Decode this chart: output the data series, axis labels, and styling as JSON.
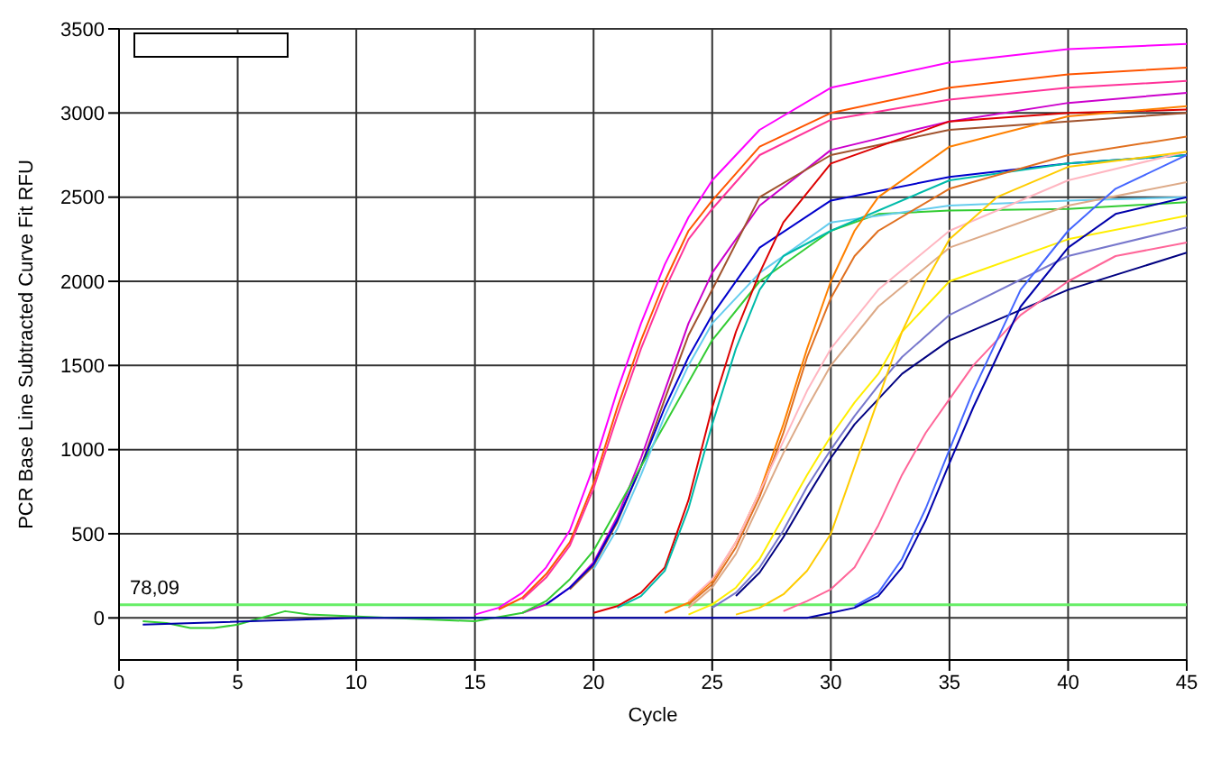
{
  "chart_data": {
    "type": "line",
    "xlabel": "Cycle",
    "ylabel": "PCR Base Line Subtracted Curve Fit RFU",
    "xlim": [
      0,
      45
    ],
    "xticks": [
      0,
      5,
      10,
      15,
      20,
      25,
      30,
      35,
      40,
      45
    ],
    "ylim": [
      -250,
      3500
    ],
    "yticks": [
      0,
      500,
      1000,
      1500,
      2000,
      2500,
      3000,
      3500
    ],
    "grid": true,
    "marker": "none",
    "line_style": "solid",
    "ref_lines": [
      {
        "axis": "y",
        "value": 78.09,
        "label": "78,09",
        "color": "#66ee66"
      }
    ],
    "series": [
      {
        "color": "#ff00ff",
        "x": [
          15,
          16,
          17,
          18,
          19,
          20,
          21,
          22,
          23,
          24,
          25,
          27,
          30,
          35,
          40,
          45
        ],
        "values": [
          20,
          60,
          150,
          300,
          520,
          900,
          1350,
          1750,
          2100,
          2380,
          2600,
          2900,
          3150,
          3300,
          3380,
          3410
        ]
      },
      {
        "color": "#ff5500",
        "x": [
          16,
          17,
          18,
          19,
          20,
          21,
          22,
          23,
          24,
          25,
          27,
          30,
          35,
          40,
          45
        ],
        "values": [
          50,
          120,
          260,
          450,
          800,
          1250,
          1650,
          2000,
          2300,
          2480,
          2800,
          3000,
          3150,
          3230,
          3270
        ]
      },
      {
        "color": "#ff3399",
        "x": [
          17,
          18,
          19,
          20,
          21,
          22,
          23,
          24,
          25,
          27,
          30,
          35,
          40,
          45
        ],
        "values": [
          110,
          240,
          430,
          770,
          1200,
          1600,
          1950,
          2250,
          2430,
          2750,
          2960,
          3080,
          3150,
          3190
        ]
      },
      {
        "color": "#cc00cc",
        "x": [
          17,
          18,
          19,
          20,
          21,
          22,
          23,
          24,
          25,
          27,
          30,
          35,
          40,
          45
        ],
        "values": [
          30,
          80,
          180,
          330,
          600,
          950,
          1350,
          1750,
          2050,
          2450,
          2780,
          2950,
          3060,
          3120
        ]
      },
      {
        "color": "#a0522d",
        "x": [
          19,
          20,
          21,
          22,
          23,
          24,
          25,
          27,
          30,
          35,
          40,
          45
        ],
        "values": [
          170,
          310,
          570,
          900,
          1300,
          1680,
          1950,
          2500,
          2750,
          2900,
          2950,
          3000
        ]
      },
      {
        "color": "#0000cc",
        "x": [
          18,
          19,
          20,
          21,
          22,
          23,
          24,
          25,
          27,
          30,
          35,
          40,
          45
        ],
        "values": [
          80,
          180,
          320,
          580,
          900,
          1250,
          1550,
          1800,
          2200,
          2480,
          2620,
          2700,
          2750
        ]
      },
      {
        "color": "#33cc33",
        "x": [
          1,
          2,
          3,
          4,
          5,
          6,
          7,
          8,
          15,
          17,
          18,
          19,
          20,
          21,
          22,
          23,
          24,
          25,
          27,
          30,
          32,
          35,
          40,
          45
        ],
        "values": [
          -20,
          -30,
          -60,
          -60,
          -40,
          0,
          40,
          20,
          -20,
          30,
          100,
          230,
          400,
          650,
          900,
          1150,
          1400,
          1650,
          2000,
          2300,
          2400,
          2420,
          2430,
          2470
        ]
      },
      {
        "color": "#66ccee",
        "x": [
          20,
          21,
          22,
          23,
          24,
          25,
          27,
          30,
          35,
          40,
          45
        ],
        "values": [
          290,
          530,
          850,
          1200,
          1500,
          1750,
          2050,
          2350,
          2450,
          2480,
          2500
        ]
      },
      {
        "color": "#dd0000",
        "x": [
          20,
          21,
          22,
          23,
          24,
          25,
          26,
          27,
          28,
          30,
          35,
          40,
          45
        ],
        "values": [
          30,
          70,
          150,
          300,
          700,
          1250,
          1700,
          2050,
          2350,
          2700,
          2950,
          3000,
          3020
        ]
      },
      {
        "color": "#00bbaa",
        "x": [
          21,
          22,
          23,
          24,
          25,
          26,
          27,
          28,
          30,
          35,
          40,
          45
        ],
        "values": [
          60,
          130,
          280,
          650,
          1150,
          1600,
          1950,
          2150,
          2300,
          2600,
          2700,
          2750
        ]
      },
      {
        "color": "#ff8000",
        "x": [
          23,
          24,
          25,
          26,
          27,
          28,
          29,
          30,
          31,
          32,
          35,
          40,
          45
        ],
        "values": [
          30,
          90,
          220,
          450,
          750,
          1150,
          1600,
          2000,
          2300,
          2500,
          2800,
          2980,
          3040
        ]
      },
      {
        "color": "#e07020",
        "x": [
          24,
          25,
          26,
          27,
          28,
          29,
          30,
          31,
          32,
          35,
          40,
          45
        ],
        "values": [
          80,
          200,
          420,
          720,
          1100,
          1550,
          1900,
          2150,
          2300,
          2550,
          2750,
          2860
        ]
      },
      {
        "color": "#ffb6c1",
        "x": [
          24,
          25,
          26,
          27,
          28,
          29,
          30,
          32,
          35,
          40,
          45
        ],
        "values": [
          100,
          230,
          450,
          750,
          1050,
          1350,
          1600,
          1950,
          2300,
          2600,
          2770
        ]
      },
      {
        "color": "#ddaa88",
        "x": [
          24,
          25,
          26,
          27,
          28,
          29,
          30,
          32,
          35,
          40,
          45
        ],
        "values": [
          60,
          180,
          380,
          680,
          980,
          1250,
          1500,
          1850,
          2200,
          2450,
          2590
        ]
      },
      {
        "color": "#ffee00",
        "x": [
          24,
          25,
          26,
          27,
          28,
          29,
          30,
          31,
          32,
          33,
          35,
          40,
          45
        ],
        "values": [
          20,
          80,
          180,
          350,
          600,
          850,
          1080,
          1280,
          1450,
          1700,
          2000,
          2250,
          2390
        ]
      },
      {
        "color": "#7777cc",
        "x": [
          25,
          26,
          27,
          28,
          29,
          30,
          31,
          32,
          33,
          35,
          40,
          45
        ],
        "values": [
          60,
          150,
          300,
          520,
          780,
          1000,
          1200,
          1380,
          1550,
          1800,
          2150,
          2320
        ]
      },
      {
        "color": "#000080",
        "x": [
          26,
          27,
          28,
          29,
          30,
          31,
          32,
          33,
          35,
          40,
          45
        ],
        "values": [
          130,
          270,
          480,
          720,
          950,
          1150,
          1300,
          1450,
          1650,
          1950,
          2170
        ]
      },
      {
        "color": "#ffcc00",
        "x": [
          26,
          27,
          28,
          29,
          30,
          31,
          32,
          33,
          34,
          35,
          37,
          40,
          45
        ],
        "values": [
          20,
          60,
          140,
          280,
          500,
          900,
          1300,
          1700,
          2000,
          2250,
          2500,
          2680,
          2770
        ]
      },
      {
        "color": "#ff6699",
        "x": [
          28,
          29,
          30,
          31,
          32,
          33,
          34,
          35,
          36,
          38,
          40,
          42,
          45
        ],
        "values": [
          40,
          100,
          170,
          300,
          550,
          850,
          1100,
          1300,
          1500,
          1800,
          2000,
          2150,
          2230
        ]
      },
      {
        "color": "#4466ff",
        "x": [
          31,
          32,
          33,
          34,
          35,
          36,
          37,
          38,
          40,
          42,
          45
        ],
        "values": [
          70,
          150,
          350,
          650,
          1000,
          1350,
          1650,
          1950,
          2300,
          2550,
          2750
        ]
      },
      {
        "color": "#0000aa",
        "x": [
          1,
          10,
          15,
          20,
          29,
          30,
          31,
          32,
          33,
          34,
          35,
          36,
          37,
          38,
          40,
          42,
          45
        ],
        "values": [
          -40,
          0,
          0,
          0,
          0,
          30,
          60,
          130,
          300,
          580,
          920,
          1250,
          1550,
          1850,
          2200,
          2400,
          2500
        ]
      }
    ]
  }
}
